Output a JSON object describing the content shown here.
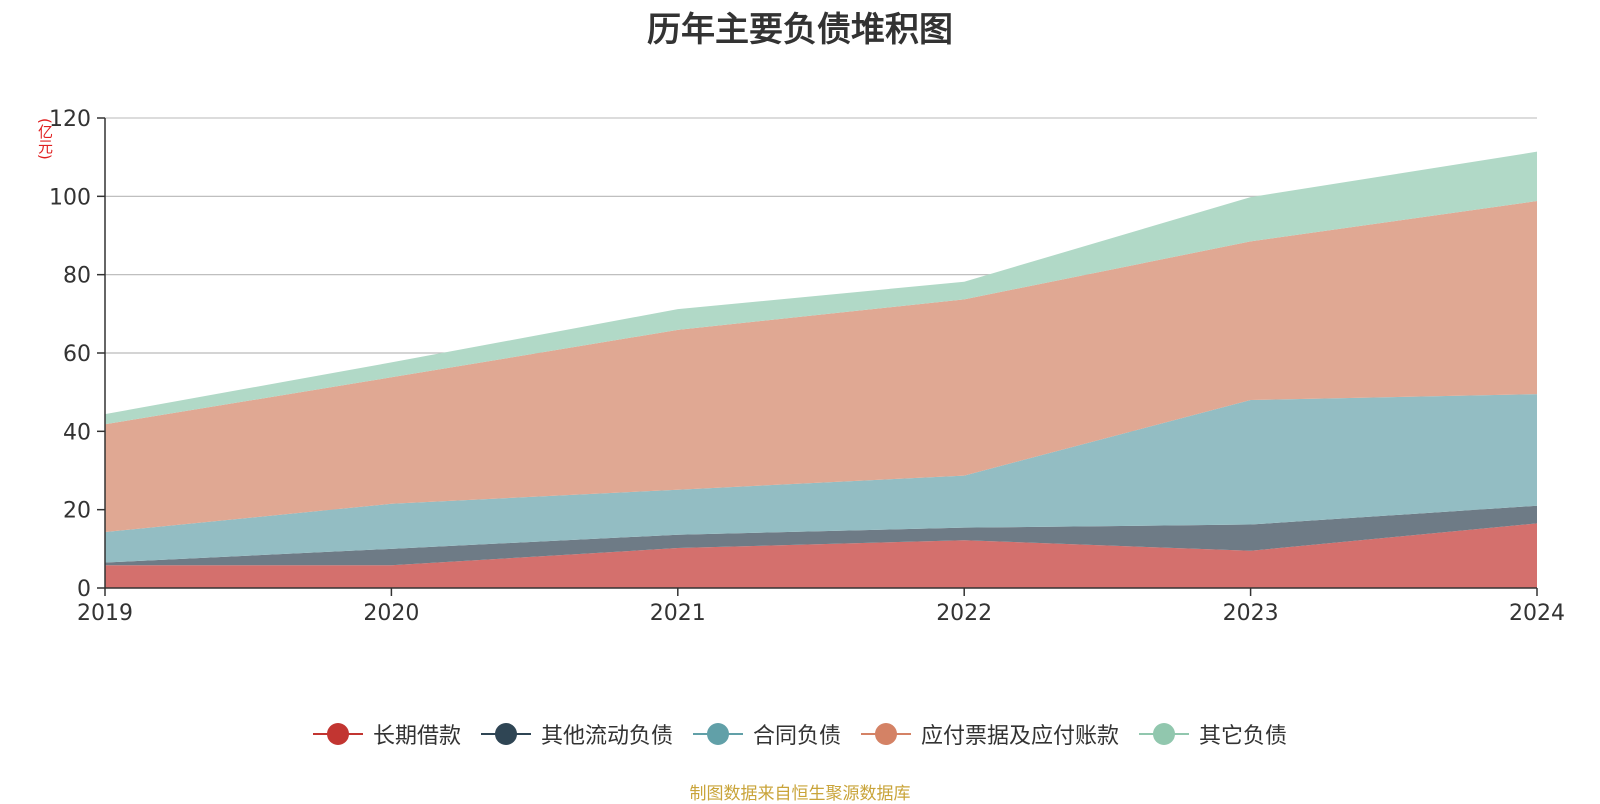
{
  "chart_data": {
    "type": "area",
    "title": "历年主要负债堆积图",
    "ylabel": "(亿元)",
    "xlabel": "",
    "ylim": [
      0,
      120
    ],
    "yticks": [
      0,
      20,
      40,
      60,
      80,
      100,
      120
    ],
    "categories": [
      "2019",
      "2020",
      "2021",
      "2022",
      "2023",
      "2024"
    ],
    "stacked": true,
    "grid": true,
    "legend_position": "bottom",
    "series": [
      {
        "name": "长期借款",
        "color": "#c23531",
        "fill": "#d4706d",
        "values": [
          5.8,
          5.8,
          10.2,
          12.2,
          9.5,
          16.5
        ]
      },
      {
        "name": "其他流动负债",
        "color": "#2f4554",
        "fill": "#6e7b86",
        "values": [
          0.7,
          4.2,
          3.4,
          3.2,
          6.7,
          4.5
        ]
      },
      {
        "name": "合同负债",
        "color": "#61a0a8",
        "fill": "#93bdc3",
        "values": [
          7.8,
          11.5,
          11.5,
          13.3,
          31.8,
          28.5
        ]
      },
      {
        "name": "应付票据及应付账款",
        "color": "#d48265",
        "fill": "#e0a893",
        "values": [
          27.5,
          32.3,
          40.8,
          45.0,
          40.5,
          49.3
        ]
      },
      {
        "name": "其它负债",
        "color": "#91c7ae",
        "fill": "#b1d9c7",
        "values": [
          2.6,
          3.8,
          5.3,
          4.5,
          11.3,
          12.6
        ]
      }
    ]
  },
  "source_text": "制图数据来自恒生聚源数据库"
}
